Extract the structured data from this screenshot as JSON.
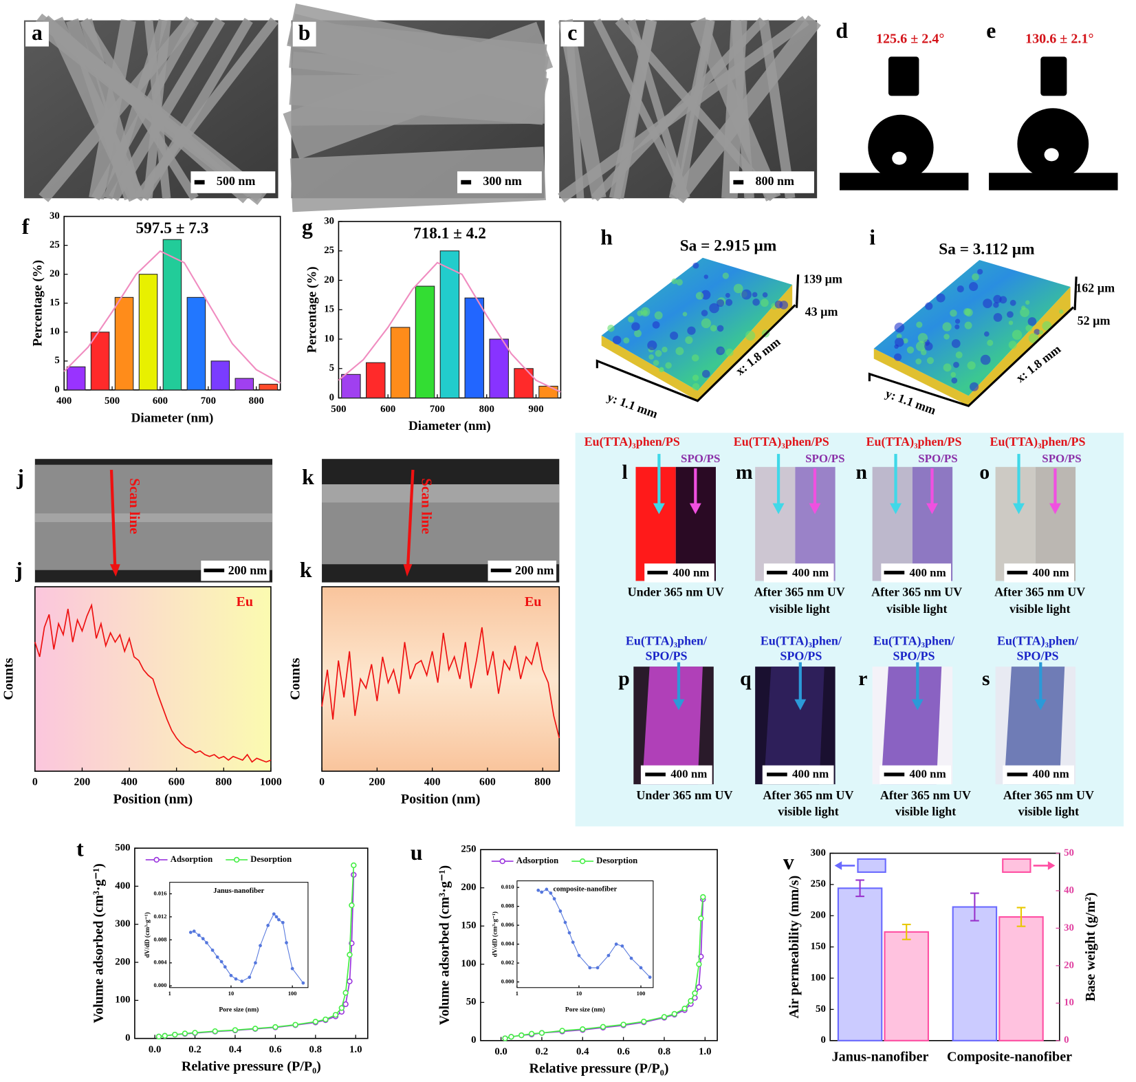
{
  "images": [
    {
      "label": "a",
      "scale": "500 nm"
    },
    {
      "label": "b",
      "scale": "300 nm"
    },
    {
      "label": "c",
      "scale": "800 nm"
    }
  ],
  "contact_angles": [
    {
      "label": "d",
      "angle": "125.6 ± 2.4°"
    },
    {
      "label": "e",
      "angle": "130.6 ± 2.1°"
    }
  ],
  "surfaces": [
    {
      "label": "h",
      "sa": "Sa = 2.915 µm",
      "z_max": "139 µm",
      "z_min": "43 µm",
      "x_size": "x: 1.8 mm",
      "y_size": "y: 1.1 mm"
    },
    {
      "label": "i",
      "sa": "Sa = 3.112 µm",
      "z_max": "162 µm",
      "z_min": "52 µm",
      "x_size": "x: 1.8 mm",
      "y_size": "y: 1.1 mm"
    }
  ],
  "line_scans": [
    {
      "label": "j",
      "scale": "200 nm",
      "scan": "Scan line"
    },
    {
      "label": "k",
      "scale": "200 nm",
      "scan": "Scan line"
    }
  ],
  "photos_top": [
    {
      "label": "l",
      "material1": "Eu(TTA)₃phen/PS",
      "material2": "SPO/PS",
      "scale": "400 nm",
      "caption": [
        "Under 365 nm UV"
      ]
    },
    {
      "label": "m",
      "material1": "Eu(TTA)₃phen/PS",
      "material2": "SPO/PS",
      "scale": "400 nm",
      "caption": [
        "After 365 nm UV",
        "visible light"
      ]
    },
    {
      "label": "n",
      "material1": "Eu(TTA)₃phen/PS",
      "material2": "SPO/PS",
      "scale": "400 nm",
      "caption": [
        "After 365 nm UV",
        "visible light"
      ]
    },
    {
      "label": "o",
      "material1": "Eu(TTA)₃phen/PS",
      "material2": "SPO/PS",
      "scale": "400 nm",
      "caption": [
        "After 365 nm UV",
        "visible light"
      ]
    }
  ],
  "photos_bottom": [
    {
      "label": "p",
      "material": [
        "Eu(TTA)₃phen/",
        "SPO/PS"
      ],
      "scale": "400 nm",
      "caption": [
        "Under 365 nm UV"
      ]
    },
    {
      "label": "q",
      "material": [
        "Eu(TTA)₃phen/",
        "SPO/PS"
      ],
      "scale": "400 nm",
      "caption": [
        "After 365 nm UV",
        "visible light"
      ]
    },
    {
      "label": "r",
      "material": [
        "Eu(TTA)₃phen/",
        "SPO/PS"
      ],
      "scale": "400 nm",
      "caption": [
        "After 365 nm UV",
        "visible light"
      ]
    },
    {
      "label": "s",
      "material": [
        "Eu(TTA)₃phen/",
        "SPO/PS"
      ],
      "scale": "400 nm",
      "caption": [
        "After 365 nm UV",
        "visible light"
      ]
    }
  ],
  "chart_data": [
    {
      "type": "histogram",
      "label": "f",
      "title": "597.5 ± 7.3",
      "xlabel": "Diameter (nm)",
      "ylabel": "Percentage (%)",
      "bins": [
        400,
        450,
        500,
        550,
        600,
        650,
        700,
        750,
        800,
        850
      ],
      "values": [
        4,
        10,
        16,
        20,
        26,
        16,
        5,
        2,
        1
      ],
      "colors": [
        "#9933ff",
        "#ff2a2a",
        "#ff8c1a",
        "#e8f000",
        "#22cc99",
        "#2277ff",
        "#7a3cff",
        "#a040f0",
        "#ff4a2a"
      ],
      "fit": {
        "x": [
          400,
          450,
          500,
          550,
          600,
          650,
          700,
          750,
          800,
          850
        ],
        "values": [
          3.2,
          7.4,
          13.5,
          20,
          24,
          22,
          15,
          8,
          3.5,
          1.2
        ],
        "color": "#f08cc0"
      },
      "xlim": [
        400,
        850
      ],
      "ylim": [
        0,
        30
      ],
      "xticks": [
        400,
        500,
        600,
        700,
        800
      ],
      "yticks": [
        0,
        5,
        10,
        15,
        20,
        25,
        30
      ]
    },
    {
      "type": "histogram",
      "label": "g",
      "title": "718.1 ± 4.2",
      "xlabel": "Diameter (nm)",
      "ylabel": "Percentage (%)",
      "bins": [
        500,
        550,
        600,
        650,
        700,
        750,
        800,
        850,
        900,
        950
      ],
      "values": [
        4,
        6,
        12,
        19,
        25,
        17,
        10,
        5,
        2
      ],
      "colors": [
        "#a040f0",
        "#ff2a2a",
        "#ff8c1a",
        "#33dd33",
        "#22cccc",
        "#2266ff",
        "#8833ff",
        "#ff2a2a",
        "#ff8c1a"
      ],
      "fit": {
        "x": [
          500,
          550,
          600,
          650,
          700,
          750,
          800,
          850,
          900,
          950
        ],
        "values": [
          3,
          6.5,
          12,
          18.5,
          23,
          21,
          14,
          7.5,
          3,
          1
        ],
        "color": "#f08cc0"
      },
      "xlim": [
        500,
        950
      ],
      "ylim": [
        0,
        30
      ],
      "xticks": [
        500,
        600,
        700,
        800,
        900
      ],
      "yticks": [
        0,
        5,
        10,
        15,
        20,
        25,
        30
      ]
    },
    {
      "type": "line",
      "label": "j",
      "xlabel": "Position (nm)",
      "ylabel": "Counts",
      "x": [
        0,
        20,
        40,
        60,
        80,
        100,
        120,
        140,
        160,
        180,
        200,
        220,
        240,
        260,
        280,
        300,
        320,
        340,
        360,
        380,
        400,
        420,
        440,
        460,
        480,
        500,
        520,
        540,
        560,
        580,
        600,
        620,
        640,
        660,
        680,
        700,
        720,
        740,
        760,
        780,
        800,
        820,
        840,
        860,
        880,
        900,
        920,
        940,
        960,
        980,
        1000
      ],
      "series": [
        {
          "name": "Eu",
          "color": "#ee1111",
          "values": [
            70,
            62,
            78,
            85,
            66,
            80,
            74,
            88,
            70,
            82,
            76,
            84,
            90,
            72,
            80,
            68,
            75,
            70,
            74,
            65,
            72,
            62,
            60,
            55,
            52,
            50,
            42,
            35,
            28,
            22,
            18,
            15,
            13,
            12,
            10,
            11,
            9,
            8,
            9,
            7,
            8,
            6,
            8,
            7,
            6,
            9,
            5,
            7,
            6,
            5,
            6
          ]
        }
      ],
      "xlim": [
        0,
        1000
      ],
      "ylim": [
        0,
        100
      ],
      "xticks": [
        0,
        200,
        400,
        600,
        800,
        1000
      ]
    },
    {
      "type": "line",
      "label": "k",
      "xlabel": "Position (nm)",
      "ylabel": "Counts",
      "x": [
        0,
        20,
        40,
        60,
        80,
        100,
        120,
        140,
        160,
        180,
        200,
        220,
        240,
        260,
        280,
        300,
        320,
        340,
        360,
        380,
        400,
        420,
        440,
        460,
        480,
        500,
        520,
        540,
        560,
        580,
        600,
        620,
        640,
        660,
        680,
        700,
        720,
        740,
        760,
        780,
        800,
        820,
        840,
        860
      ],
      "series": [
        {
          "name": "Eu",
          "color": "#ee1111",
          "values": [
            35,
            55,
            28,
            60,
            40,
            65,
            30,
            50,
            45,
            58,
            38,
            62,
            48,
            55,
            42,
            70,
            50,
            58,
            60,
            52,
            65,
            48,
            75,
            55,
            62,
            50,
            70,
            45,
            60,
            78,
            52,
            65,
            42,
            60,
            55,
            68,
            50,
            62,
            58,
            70,
            55,
            48,
            30,
            18
          ]
        }
      ],
      "xlim": [
        0,
        860
      ],
      "ylim": [
        0,
        100
      ],
      "xticks": [
        0,
        200,
        400,
        600,
        800
      ]
    },
    {
      "type": "line",
      "label": "t",
      "xlabel": "Relative pressure (P/P₀)",
      "ylabel": "Volume adsorbed (cm³·g⁻¹)",
      "markers": true,
      "x": [
        0.02,
        0.05,
        0.1,
        0.15,
        0.2,
        0.3,
        0.4,
        0.5,
        0.6,
        0.7,
        0.8,
        0.85,
        0.9,
        0.93,
        0.95,
        0.97,
        0.98,
        0.99
      ],
      "series": [
        {
          "name": "Adsorption",
          "color": "#9933dd",
          "values": [
            5,
            7,
            10,
            12,
            14,
            18,
            21,
            25,
            29,
            35,
            42,
            48,
            58,
            70,
            90,
            150,
            250,
            430
          ]
        },
        {
          "name": "Desorption",
          "color": "#44ee44",
          "values": [
            5,
            7,
            10,
            13,
            15,
            19,
            22,
            26,
            30,
            36,
            44,
            50,
            62,
            80,
            120,
            220,
            350,
            455
          ]
        }
      ],
      "xlim": [
        -0.1,
        1.06
      ],
      "ylim": [
        0,
        500
      ],
      "xticks": [
        {
          "value": 0,
          "label": "0.0"
        },
        0.2,
        0.4,
        0.6,
        0.8,
        {
          "value": 1,
          "label": "1.0"
        }
      ],
      "yticks": [
        0,
        100,
        200,
        300,
        400,
        500
      ]
    },
    {
      "type": "line",
      "title": "Janus-nanofiber",
      "xlabel": "Pore size (nm)",
      "ylabel": "dV/dD (cm³·g⁻¹)",
      "log_x": true,
      "markers": true,
      "x": [
        2.2,
        2.5,
        3,
        3.5,
        4,
        5,
        6,
        7,
        8,
        10,
        12,
        15,
        20,
        25,
        30,
        40,
        50,
        55,
        60,
        70,
        80,
        100,
        150
      ],
      "series": [
        {
          "color": "#5577dd",
          "values": [
            0.0093,
            0.0095,
            0.0088,
            0.0082,
            0.0075,
            0.0062,
            0.005,
            0.0042,
            0.0033,
            0.0018,
            0.0012,
            0.0008,
            0.0015,
            0.004,
            0.007,
            0.0105,
            0.0125,
            0.012,
            0.0115,
            0.011,
            0.0075,
            0.003,
            0.0005
          ]
        }
      ],
      "xlim": [
        1,
        180
      ],
      "ylim": [
        -0.0003,
        0.018
      ],
      "xticks": [
        1,
        10,
        100
      ],
      "yticks": [
        {
          "value": 0,
          "label": "0.000"
        },
        0.004,
        0.008,
        0.012,
        0.016
      ]
    },
    {
      "type": "line",
      "label": "u",
      "xlabel": "Relative pressure (P/P₀)",
      "ylabel": "Volume adsorbed (cm³·g⁻¹)",
      "markers": true,
      "x": [
        0.02,
        0.05,
        0.1,
        0.15,
        0.2,
        0.3,
        0.4,
        0.5,
        0.6,
        0.7,
        0.8,
        0.85,
        0.9,
        0.93,
        0.95,
        0.97,
        0.98,
        0.99
      ],
      "series": [
        {
          "name": "Adsorption",
          "color": "#9933dd",
          "values": [
            3,
            5,
            7,
            8,
            10,
            12,
            14,
            17,
            20,
            24,
            30,
            34,
            40,
            48,
            56,
            70,
            110,
            185
          ]
        },
        {
          "name": "Desorption",
          "color": "#44ee44",
          "values": [
            3,
            5,
            7,
            9,
            10,
            13,
            15,
            18,
            21,
            25,
            31,
            35,
            42,
            52,
            62,
            100,
            160,
            188
          ]
        }
      ],
      "xlim": [
        -0.1,
        1.06
      ],
      "ylim": [
        0,
        250
      ],
      "xticks": [
        {
          "value": 0,
          "label": "0.0"
        },
        0.2,
        0.4,
        0.6,
        0.8,
        {
          "value": 1,
          "label": "1.0"
        }
      ],
      "yticks": [
        0,
        50,
        100,
        150,
        200,
        250
      ]
    },
    {
      "type": "line",
      "title": "composite-nanofiber",
      "xlabel": "Pore size (nm)",
      "ylabel": "dV/dD (cm³·g⁻¹)",
      "log_x": true,
      "markers": true,
      "x": [
        2.2,
        2.5,
        3,
        3.5,
        4,
        5,
        6,
        7,
        8,
        10,
        15,
        20,
        30,
        40,
        50,
        70,
        100,
        140
      ],
      "series": [
        {
          "color": "#5577dd",
          "values": [
            0.0097,
            0.0095,
            0.0098,
            0.0094,
            0.0088,
            0.0075,
            0.0063,
            0.0052,
            0.0042,
            0.0028,
            0.0015,
            0.0015,
            0.0028,
            0.004,
            0.0038,
            0.0025,
            0.0015,
            0.0005
          ]
        }
      ],
      "xlim": [
        1,
        158
      ],
      "ylim": [
        -0.0006,
        0.0107
      ],
      "xticks": [
        1,
        10,
        100
      ],
      "yticks": [
        {
          "value": 0,
          "label": "0.000"
        },
        0.002,
        0.004,
        0.006,
        0.008,
        {
          "value": 0.01,
          "label": "0.010"
        }
      ]
    },
    {
      "type": "bar",
      "label": "v",
      "ylabel": "Air permeability (mm/s)",
      "y2label": "Base weight (g/m²)",
      "categories": [
        "Janus-nanofiber",
        "Composite-nanofiber"
      ],
      "series": [
        {
          "color": "#6a6aff",
          "error_color": "#9933cc",
          "values": [
            244,
            214
          ],
          "errors": [
            13,
            22
          ]
        },
        {
          "color": "#ff4fa3",
          "error_color": "#e8c800",
          "axis": "y2",
          "values": [
            29,
            33
          ],
          "errors": [
            2,
            2.5
          ]
        }
      ],
      "ylim": [
        0,
        300
      ],
      "yticks": [
        0,
        50,
        100,
        150,
        200,
        250,
        300
      ],
      "y2lim": [
        0,
        50
      ],
      "y2ticks": [
        0,
        10,
        20,
        30,
        40,
        50
      ]
    }
  ]
}
